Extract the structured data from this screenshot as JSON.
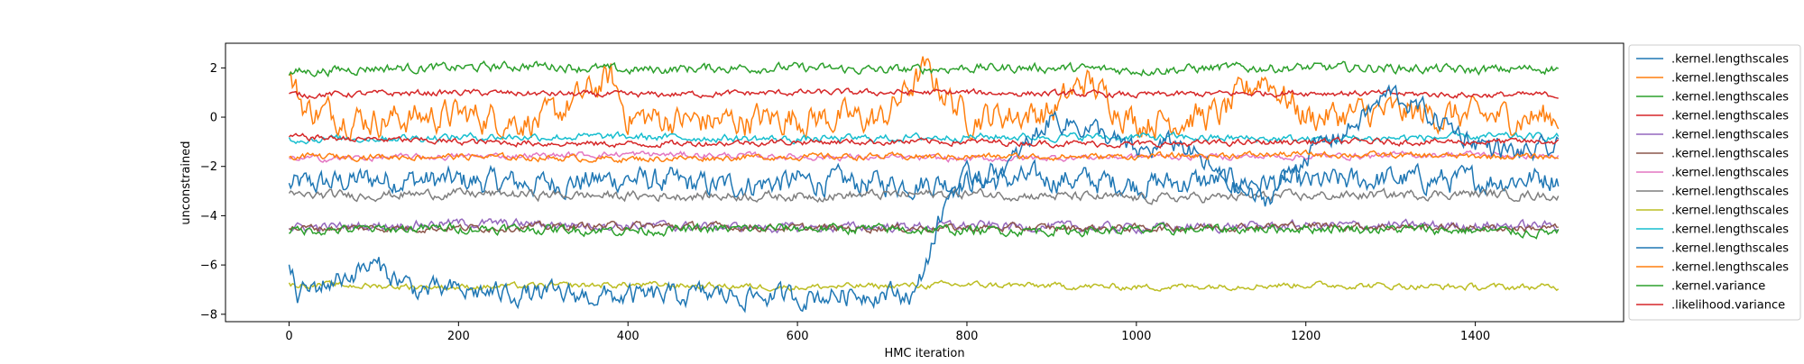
{
  "chart_data": {
    "type": "line",
    "title": "",
    "xlabel": "HMC iteration",
    "ylabel": "unconstrained",
    "xlim": [
      -75,
      1575
    ],
    "ylim": [
      -8.3,
      3.0
    ],
    "xticks": [
      0,
      200,
      400,
      600,
      800,
      1000,
      1200,
      1400
    ],
    "yticks": [
      -8,
      -6,
      -4,
      -2,
      0,
      2
    ],
    "grid": false,
    "legend_position": "outside-right",
    "n_iterations": 1500,
    "series": [
      {
        "name": ".kernel.lengthscales",
        "color": "#1f77b4",
        "mean": -2.7,
        "amplitude": 0.4,
        "points": [
          [
            0,
            -2.8
          ],
          [
            100,
            -2.5
          ],
          [
            200,
            -2.6
          ],
          [
            300,
            -2.7
          ],
          [
            400,
            -2.5
          ],
          [
            500,
            -2.8
          ],
          [
            600,
            -2.6
          ],
          [
            700,
            -2.7
          ],
          [
            800,
            -2.6
          ],
          [
            900,
            -2.5
          ],
          [
            1000,
            -2.7
          ],
          [
            1100,
            -2.6
          ],
          [
            1200,
            -2.7
          ],
          [
            1300,
            -2.5
          ],
          [
            1400,
            -2.6
          ],
          [
            1499,
            -2.4
          ]
        ]
      },
      {
        "name": ".kernel.lengthscales",
        "color": "#ff7f0e",
        "mean": 0.0,
        "amplitude": 0.5,
        "points": [
          [
            0,
            1.6
          ],
          [
            20,
            0.3
          ],
          [
            100,
            -0.1
          ],
          [
            200,
            0.1
          ],
          [
            300,
            -0.2
          ],
          [
            380,
            1.6
          ],
          [
            400,
            0.0
          ],
          [
            500,
            -0.2
          ],
          [
            600,
            0.0
          ],
          [
            700,
            -0.1
          ],
          [
            750,
            1.9
          ],
          [
            800,
            0.0
          ],
          [
            900,
            0.2
          ],
          [
            940,
            1.5
          ],
          [
            1000,
            -0.2
          ],
          [
            1100,
            0.1
          ],
          [
            1150,
            1.7
          ],
          [
            1200,
            0.0
          ],
          [
            1300,
            0.2
          ],
          [
            1400,
            0.0
          ],
          [
            1499,
            0.0
          ]
        ]
      },
      {
        "name": ".kernel.lengthscales",
        "color": "#2ca02c",
        "mean": 2.0,
        "amplitude": 0.15,
        "points": [
          [
            0,
            1.8
          ],
          [
            100,
            2.0
          ],
          [
            200,
            2.0
          ],
          [
            300,
            2.1
          ],
          [
            400,
            1.9
          ],
          [
            500,
            2.0
          ],
          [
            600,
            2.0
          ],
          [
            700,
            1.9
          ],
          [
            800,
            2.0
          ],
          [
            900,
            2.0
          ],
          [
            1000,
            1.9
          ],
          [
            1100,
            2.0
          ],
          [
            1200,
            2.0
          ],
          [
            1300,
            2.0
          ],
          [
            1400,
            1.9
          ],
          [
            1499,
            2.0
          ]
        ]
      },
      {
        "name": ".kernel.lengthscales",
        "color": "#d62728",
        "mean": 1.0,
        "amplitude": 0.1,
        "points": [
          [
            0,
            0.9
          ],
          [
            200,
            1.0
          ],
          [
            400,
            0.9
          ],
          [
            600,
            1.0
          ],
          [
            800,
            1.0
          ],
          [
            1000,
            0.9
          ],
          [
            1200,
            1.0
          ],
          [
            1400,
            0.9
          ],
          [
            1499,
            0.9
          ]
        ]
      },
      {
        "name": ".kernel.lengthscales",
        "color": "#9467bd",
        "mean": -4.4,
        "amplitude": 0.15,
        "points": [
          [
            0,
            -4.5
          ],
          [
            200,
            -4.3
          ],
          [
            400,
            -4.4
          ],
          [
            600,
            -4.5
          ],
          [
            800,
            -4.4
          ],
          [
            1000,
            -4.5
          ],
          [
            1200,
            -4.4
          ],
          [
            1400,
            -4.4
          ],
          [
            1499,
            -4.4
          ]
        ]
      },
      {
        "name": ".kernel.lengthscales",
        "color": "#8c564b",
        "mean": -4.5,
        "amplitude": 0.12,
        "points": [
          [
            0,
            -4.5
          ],
          [
            200,
            -4.5
          ],
          [
            400,
            -4.4
          ],
          [
            600,
            -4.5
          ],
          [
            800,
            -4.5
          ],
          [
            1000,
            -4.5
          ],
          [
            1200,
            -4.4
          ],
          [
            1400,
            -4.5
          ],
          [
            1499,
            -4.5
          ]
        ]
      },
      {
        "name": ".kernel.lengthscales",
        "color": "#e377c2",
        "mean": -1.6,
        "amplitude": 0.1,
        "points": [
          [
            0,
            -1.7
          ],
          [
            200,
            -1.6
          ],
          [
            400,
            -1.5
          ],
          [
            600,
            -1.6
          ],
          [
            800,
            -1.7
          ],
          [
            1000,
            -1.6
          ],
          [
            1200,
            -1.6
          ],
          [
            1400,
            -1.5
          ],
          [
            1499,
            -1.6
          ]
        ]
      },
      {
        "name": ".kernel.lengthscales",
        "color": "#7f7f7f",
        "mean": -3.2,
        "amplitude": 0.15,
        "points": [
          [
            0,
            -3.2
          ],
          [
            200,
            -3.1
          ],
          [
            400,
            -3.2
          ],
          [
            600,
            -3.2
          ],
          [
            800,
            -3.1
          ],
          [
            1000,
            -3.3
          ],
          [
            1200,
            -3.2
          ],
          [
            1400,
            -3.1
          ],
          [
            1499,
            -3.2
          ]
        ]
      },
      {
        "name": ".kernel.lengthscales",
        "color": "#bcbd22",
        "mean": -6.9,
        "amplitude": 0.1,
        "points": [
          [
            0,
            -6.8
          ],
          [
            200,
            -6.9
          ],
          [
            400,
            -6.8
          ],
          [
            600,
            -6.9
          ],
          [
            800,
            -6.8
          ],
          [
            1000,
            -6.9
          ],
          [
            1200,
            -6.8
          ],
          [
            1400,
            -6.9
          ],
          [
            1499,
            -6.9
          ]
        ]
      },
      {
        "name": ".kernel.lengthscales",
        "color": "#17becf",
        "mean": -0.8,
        "amplitude": 0.12,
        "points": [
          [
            0,
            -0.9
          ],
          [
            200,
            -0.8
          ],
          [
            400,
            -0.8
          ],
          [
            600,
            -0.9
          ],
          [
            800,
            -0.8
          ],
          [
            1000,
            -0.8
          ],
          [
            1200,
            -0.9
          ],
          [
            1400,
            -0.8
          ],
          [
            1499,
            -0.8
          ]
        ]
      },
      {
        "name": ".kernel.lengthscales",
        "color": "#1f77b4",
        "mean": -7.0,
        "amplitude": 0.35,
        "points": [
          [
            0,
            -6.0
          ],
          [
            10,
            -7.2
          ],
          [
            100,
            -6.0
          ],
          [
            150,
            -7.0
          ],
          [
            300,
            -7.2
          ],
          [
            400,
            -7.3
          ],
          [
            500,
            -7.2
          ],
          [
            600,
            -7.3
          ],
          [
            700,
            -7.1
          ],
          [
            740,
            -7.2
          ],
          [
            760,
            -5.0
          ],
          [
            780,
            -3.0
          ],
          [
            800,
            -2.5
          ],
          [
            850,
            -2.0
          ],
          [
            900,
            0.0
          ],
          [
            950,
            -0.5
          ],
          [
            1000,
            -1.5
          ],
          [
            1050,
            -1.0
          ],
          [
            1100,
            -2.5
          ],
          [
            1150,
            -3.5
          ],
          [
            1200,
            -1.5
          ],
          [
            1250,
            -0.5
          ],
          [
            1300,
            1.0
          ],
          [
            1350,
            0.0
          ],
          [
            1400,
            -1.0
          ],
          [
            1450,
            -1.5
          ],
          [
            1499,
            -1.3
          ]
        ]
      },
      {
        "name": ".kernel.lengthscales",
        "color": "#ff7f0e",
        "mean": -1.6,
        "amplitude": 0.1,
        "points": [
          [
            0,
            -1.6
          ],
          [
            200,
            -1.6
          ],
          [
            400,
            -1.7
          ],
          [
            600,
            -1.6
          ],
          [
            800,
            -1.6
          ],
          [
            1000,
            -1.6
          ],
          [
            1200,
            -1.5
          ],
          [
            1400,
            -1.6
          ],
          [
            1499,
            -1.6
          ]
        ]
      },
      {
        "name": ".kernel.variance",
        "color": "#2ca02c",
        "mean": -4.55,
        "amplitude": 0.15,
        "points": [
          [
            0,
            -4.6
          ],
          [
            200,
            -4.5
          ],
          [
            400,
            -4.6
          ],
          [
            600,
            -4.5
          ],
          [
            800,
            -4.6
          ],
          [
            1000,
            -4.6
          ],
          [
            1200,
            -4.5
          ],
          [
            1400,
            -4.6
          ],
          [
            1499,
            -4.7
          ]
        ]
      },
      {
        "name": ".likelihood.variance",
        "color": "#d62728",
        "mean": -1.0,
        "amplitude": 0.1,
        "points": [
          [
            0,
            -0.8
          ],
          [
            200,
            -1.0
          ],
          [
            400,
            -1.1
          ],
          [
            600,
            -1.0
          ],
          [
            800,
            -1.0
          ],
          [
            1000,
            -1.1
          ],
          [
            1200,
            -1.0
          ],
          [
            1400,
            -1.0
          ],
          [
            1499,
            -1.0
          ]
        ]
      }
    ]
  }
}
